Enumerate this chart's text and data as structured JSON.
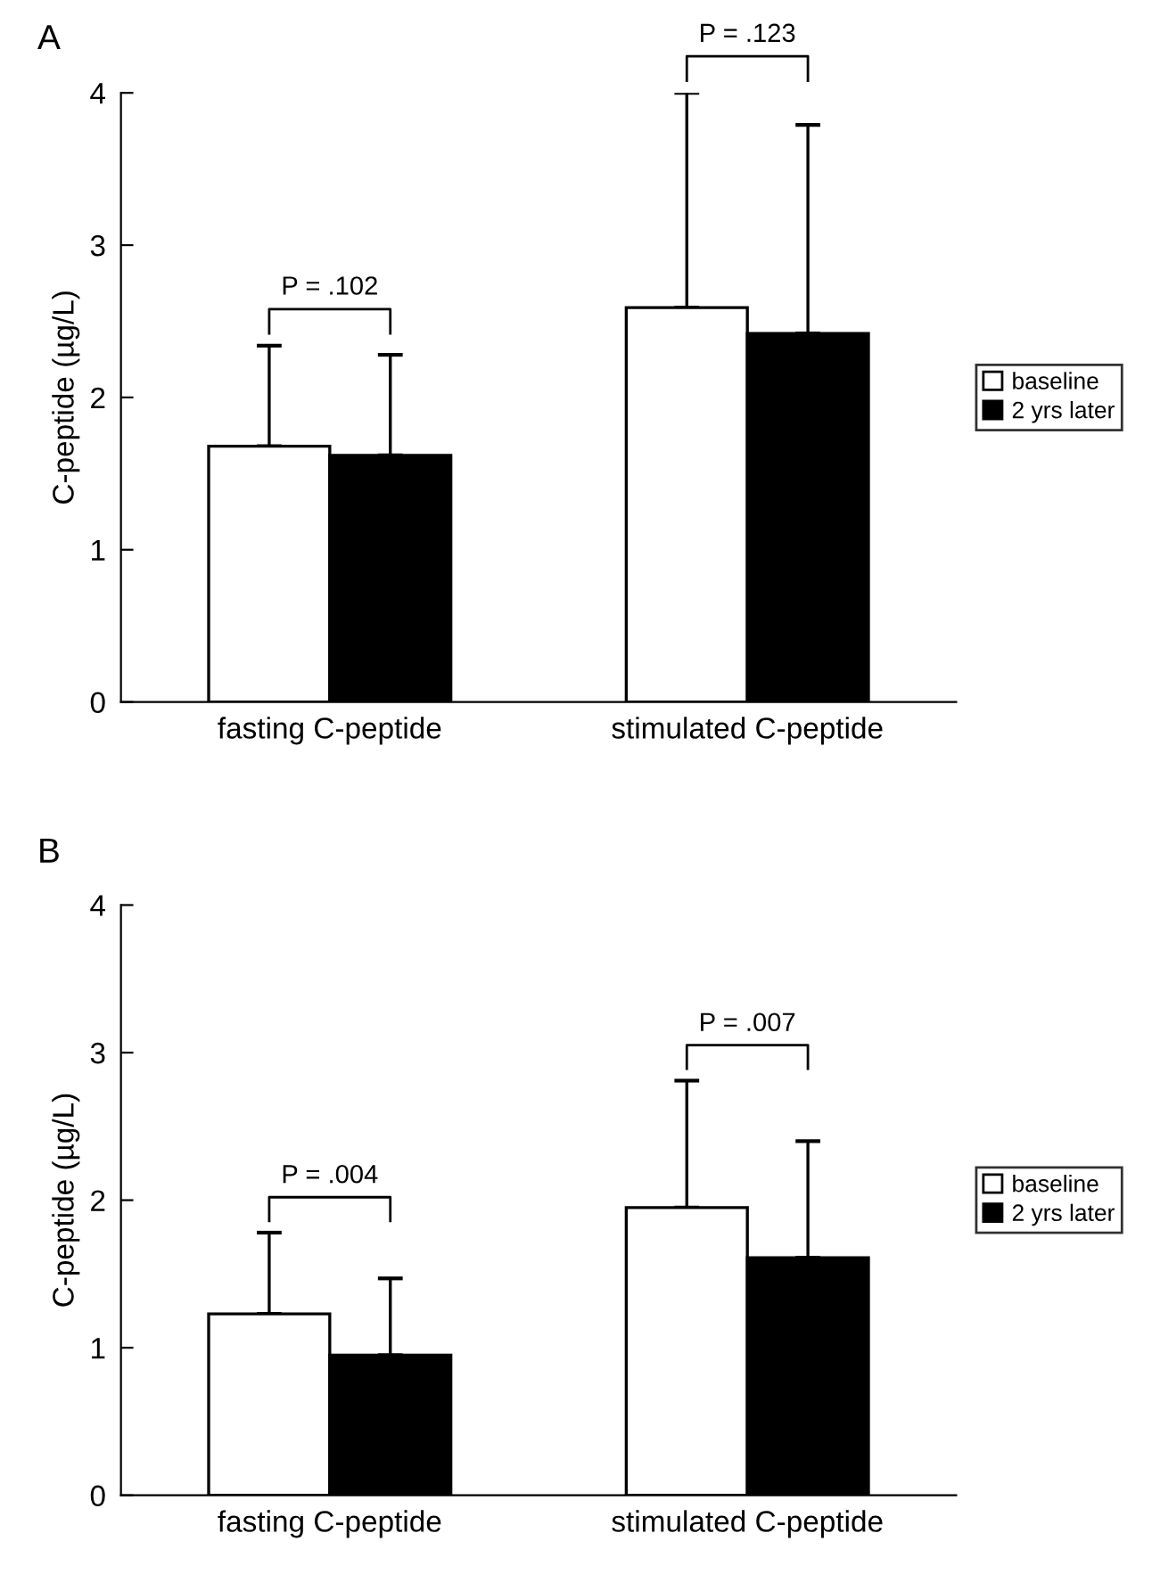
{
  "chart_data": [
    {
      "type": "bar",
      "title": "A",
      "ylabel": "C-peptide (µg/L)",
      "categories": [
        "fasting C-peptide",
        "stimulated C-peptide"
      ],
      "series": [
        {
          "name": "baseline",
          "color": "#ffffff",
          "values": [
            1.68,
            2.59
          ],
          "errors": [
            [
              1.68,
              2.34
            ],
            [
              2.59,
              4.0
            ]
          ]
        },
        {
          "name": "2 yrs later",
          "color": "#000000",
          "values": [
            1.62,
            2.42
          ],
          "errors": [
            [
              1.62,
              2.28
            ],
            [
              2.42,
              3.79
            ]
          ]
        }
      ],
      "ylim": [
        0,
        4
      ],
      "yticks": [
        0,
        1,
        2,
        3,
        4
      ],
      "annotations": [
        "P = .102",
        "P = .123"
      ],
      "legend": "right",
      "grid": false
    },
    {
      "type": "bar",
      "title": "B",
      "ylabel": "C-peptide (µg/L)",
      "categories": [
        "fasting C-peptide",
        "stimulated C-peptide"
      ],
      "series": [
        {
          "name": "baseline",
          "color": "#ffffff",
          "values": [
            1.23,
            1.95
          ],
          "errors": [
            [
              1.23,
              1.78
            ],
            [
              1.95,
              2.81
            ]
          ]
        },
        {
          "name": "2 yrs later",
          "color": "#000000",
          "values": [
            0.95,
            1.61
          ],
          "errors": [
            [
              0.95,
              1.47
            ],
            [
              1.61,
              2.4
            ]
          ]
        }
      ],
      "ylim": [
        0,
        4
      ],
      "yticks": [
        0,
        1,
        2,
        3,
        4
      ],
      "annotations": [
        "P = .004",
        "P = .007"
      ],
      "legend": "right",
      "grid": false
    }
  ]
}
